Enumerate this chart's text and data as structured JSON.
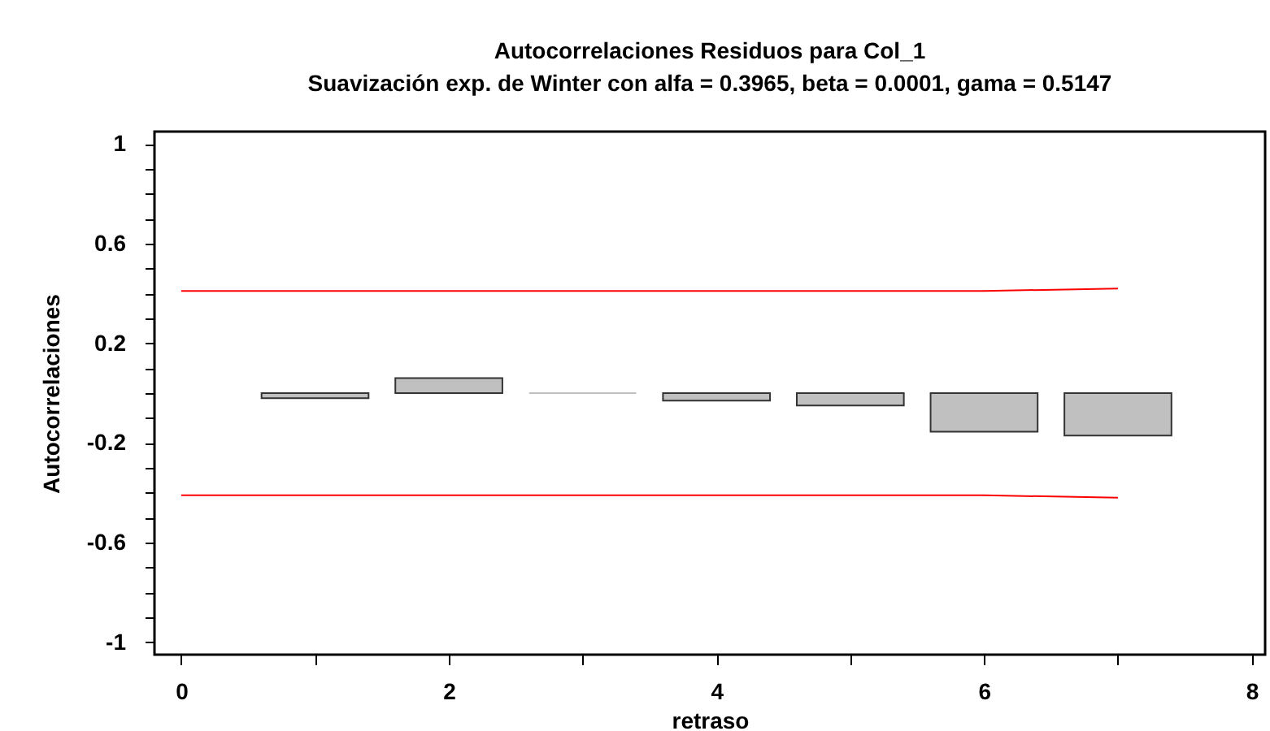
{
  "chart_data": {
    "type": "bar",
    "title": "Autocorrelaciones Residuos para Col_1",
    "subtitle": "Suavización exp. de Winter con alfa = 0.3965, beta = 0.0001, gama = 0.5147",
    "xlabel": "retraso",
    "ylabel": "Autocorrelaciones",
    "xlim": [
      -0.2,
      8.1
    ],
    "ylim": [
      -1.05,
      1.05
    ],
    "xticks": [
      0,
      {
        "value": 1,
        "label": null
      },
      2,
      {
        "value": 3,
        "label": null
      },
      4,
      {
        "value": 5,
        "label": null
      },
      6,
      {
        "value": 7,
        "label": null
      },
      8
    ],
    "yticks": [
      -1,
      {
        "value": -0.9,
        "label": null
      },
      {
        "value": -0.8,
        "label": null
      },
      {
        "value": -0.7,
        "label": null
      },
      -0.6,
      {
        "value": -0.5,
        "label": null
      },
      {
        "value": -0.4,
        "label": null
      },
      {
        "value": -0.3,
        "label": null
      },
      -0.2,
      {
        "value": -0.1,
        "label": null
      },
      {
        "value": 0,
        "label": null
      },
      {
        "value": 0.1,
        "label": null
      },
      0.2,
      {
        "value": 0.3,
        "label": null
      },
      {
        "value": 0.4,
        "label": null
      },
      {
        "value": 0.5,
        "label": null
      },
      0.6,
      {
        "value": 0.7,
        "label": null
      },
      {
        "value": 0.8,
        "label": null
      },
      {
        "value": 0.9,
        "label": null
      },
      1
    ],
    "grid": false,
    "series": [
      {
        "type": "bar",
        "color": "#c0c0c0",
        "x": [
          1,
          2,
          3,
          4,
          5,
          6,
          7
        ],
        "values": [
          -0.02,
          0.06,
          0,
          -0.03,
          -0.05,
          -0.155,
          -0.17
        ]
      },
      {
        "type": "line",
        "color": "#ff0000",
        "x": [
          0,
          1,
          2,
          3,
          4,
          5,
          6,
          7
        ],
        "values": [
          0.41,
          0.41,
          0.41,
          0.41,
          0.41,
          0.41,
          0.41,
          0.42
        ]
      },
      {
        "type": "line",
        "color": "#ff0000",
        "x": [
          0,
          1,
          2,
          3,
          4,
          5,
          6,
          7
        ],
        "values": [
          -0.41,
          -0.41,
          -0.41,
          -0.41,
          -0.41,
          -0.41,
          -0.41,
          -0.42
        ]
      }
    ]
  }
}
